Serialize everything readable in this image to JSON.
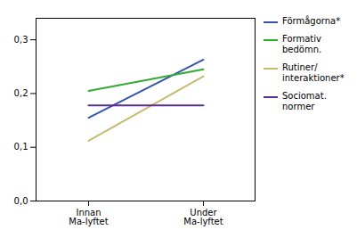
{
  "chart_data": {
    "type": "line",
    "categories": [
      "Innan\nMa-lyftet",
      "Under\nMa-lyftet"
    ],
    "series": [
      {
        "name": "Förmågorna*",
        "color": "#3355aa",
        "values": [
          0.155,
          0.263
        ]
      },
      {
        "name": "Formativ\nbedömn.",
        "color": "#33aa33",
        "values": [
          0.205,
          0.245
        ]
      },
      {
        "name": "Rutiner/\ninteraktioner*",
        "color": "#c8b870",
        "values": [
          0.112,
          0.232
        ]
      },
      {
        "name": "Sociomat.\nnormer",
        "color": "#5c2d8a",
        "values": [
          0.178,
          0.178
        ]
      }
    ],
    "ylim": [
      0.0,
      0.34
    ],
    "yticks": [
      {
        "value": 0.0,
        "label": "0,0"
      },
      {
        "value": 0.1,
        "label": "0,1"
      },
      {
        "value": 0.2,
        "label": "0,2"
      },
      {
        "value": 0.3,
        "label": "0,3"
      }
    ],
    "grid": false,
    "legend": "right"
  }
}
